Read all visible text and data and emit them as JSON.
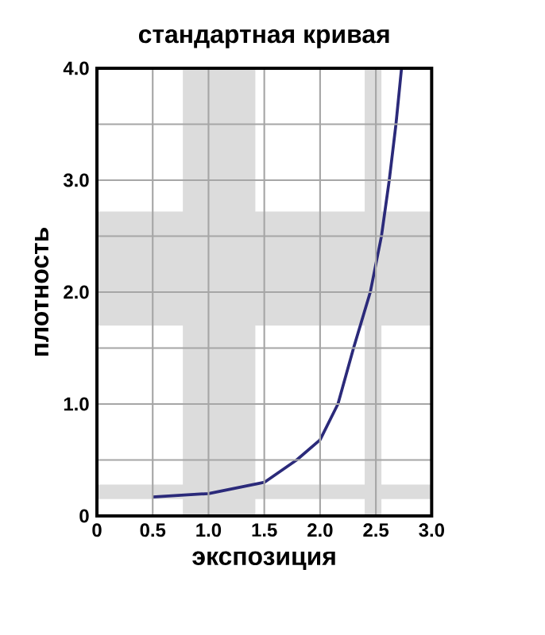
{
  "chart_data": {
    "type": "line",
    "title": "стандартная кривая",
    "xlabel": "экспозиция",
    "ylabel": "плотность",
    "x": [
      0.5,
      1.0,
      1.5,
      1.79,
      2.0,
      2.16,
      2.3,
      2.45,
      2.55,
      2.62,
      2.68,
      2.73
    ],
    "series": [
      {
        "color": "#2b2a7a",
        "values": [
          0.17,
          0.2,
          0.3,
          0.5,
          0.68,
          1.0,
          1.5,
          2.0,
          2.5,
          3.0,
          3.5,
          4.0
        ]
      }
    ],
    "xlim": [
      0,
      3.0
    ],
    "ylim": [
      0,
      4.0
    ],
    "xticks": [
      0,
      0.5,
      {
        "value": 1,
        "label": "1.0"
      },
      1.5,
      {
        "value": 2,
        "label": "2.0"
      },
      2.5,
      {
        "value": 3,
        "label": "3.0"
      }
    ],
    "yticks": [
      0,
      {
        "value": 0.5,
        "label": null
      },
      {
        "value": 1,
        "label": "1.0"
      },
      {
        "value": 1.5,
        "label": null
      },
      {
        "value": 2,
        "label": "2.0"
      },
      {
        "value": 2.5,
        "label": null
      },
      {
        "value": 3,
        "label": "3.0"
      },
      {
        "value": 3.5,
        "label": null
      },
      {
        "value": 4,
        "label": "4.0"
      }
    ],
    "bands": [
      {
        "axis": "y",
        "from": 1.7,
        "to": 2.72,
        "color": "#dcdcdc"
      },
      {
        "axis": "x",
        "from": 2.4,
        "to": 2.55,
        "color": "#dcdcdc"
      },
      {
        "axis": "y",
        "from": 0.15,
        "to": 0.28,
        "color": "#dcdcdc"
      },
      {
        "axis": "x",
        "from": 0.77,
        "to": 1.42,
        "color": "#dcdcdc"
      }
    ],
    "grid": true,
    "marker": "none",
    "line_style": "solid"
  }
}
